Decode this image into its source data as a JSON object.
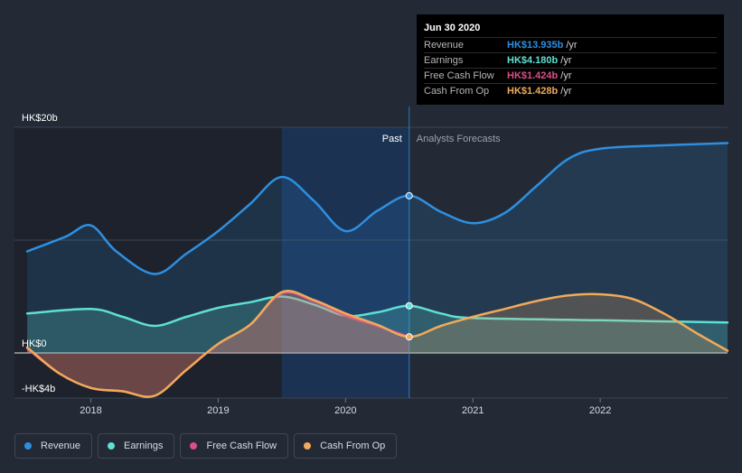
{
  "chart_data": {
    "type": "area",
    "title": "",
    "xlabel": "",
    "ylabel": "",
    "ylim": [
      -4,
      20
    ],
    "x_ticks": [
      2018,
      2019,
      2020,
      2021,
      2022
    ],
    "x_tick_labels": [
      "2018",
      "2019",
      "2020",
      "2021",
      "2022"
    ],
    "y_tick_labels": [
      {
        "value": 20,
        "label": "HK$20b"
      },
      {
        "value": 0,
        "label": "HK$0"
      },
      {
        "value": -4,
        "label": "-HK$4b"
      }
    ],
    "past_label": "Past",
    "forecast_label": "Analysts Forecasts",
    "present_date": 2020.5,
    "highlight_start": 2019.5,
    "series": [
      {
        "name": "Revenue",
        "color": "#2e8fe0",
        "x": [
          2017.5,
          2017.8,
          2018.0,
          2018.2,
          2018.5,
          2018.75,
          2019.0,
          2019.25,
          2019.5,
          2019.75,
          2020.0,
          2020.25,
          2020.5,
          2020.75,
          2021.0,
          2021.25,
          2021.5,
          2021.75,
          2022.0,
          2022.5,
          2023.0
        ],
        "values": [
          9.0,
          10.3,
          11.3,
          9.0,
          7.0,
          8.8,
          10.8,
          13.2,
          15.6,
          13.5,
          10.8,
          12.6,
          13.935,
          12.5,
          11.5,
          12.4,
          14.8,
          17.2,
          18.1,
          18.4,
          18.6
        ]
      },
      {
        "name": "Earnings",
        "color": "#5ee0d2",
        "x": [
          2017.5,
          2018.0,
          2018.25,
          2018.5,
          2018.75,
          2019.0,
          2019.25,
          2019.5,
          2019.75,
          2020.0,
          2020.25,
          2020.5,
          2020.75,
          2021.0,
          2022.0,
          2023.0
        ],
        "values": [
          3.5,
          3.9,
          3.2,
          2.4,
          3.2,
          4.0,
          4.5,
          5.0,
          4.3,
          3.3,
          3.6,
          4.18,
          3.5,
          3.1,
          2.9,
          2.7
        ]
      },
      {
        "name": "Free Cash Flow",
        "color": "#d94f8a",
        "x": [
          2017.5,
          2017.75,
          2018.0,
          2018.25,
          2018.5,
          2018.75,
          2019.0,
          2019.25,
          2019.5,
          2019.75,
          2020.0,
          2020.25,
          2020.5
        ],
        "values": [
          0.4,
          -1.8,
          -3.1,
          -3.4,
          -3.8,
          -1.5,
          0.8,
          2.5,
          5.3,
          4.6,
          3.3,
          2.4,
          1.424
        ]
      },
      {
        "name": "Cash From Op",
        "color": "#f0aa5a",
        "x": [
          2017.5,
          2017.75,
          2018.0,
          2018.25,
          2018.5,
          2018.75,
          2019.0,
          2019.25,
          2019.5,
          2019.75,
          2020.0,
          2020.25,
          2020.5,
          2020.75,
          2021.0,
          2021.25,
          2021.5,
          2021.75,
          2022.0,
          2022.25,
          2022.5,
          2022.75,
          2023.0
        ],
        "values": [
          0.5,
          -1.8,
          -3.1,
          -3.4,
          -3.8,
          -1.5,
          0.8,
          2.5,
          5.4,
          4.7,
          3.5,
          2.5,
          1.428,
          2.4,
          3.2,
          3.9,
          4.6,
          5.1,
          5.2,
          4.8,
          3.5,
          1.8,
          0.2
        ]
      }
    ]
  },
  "tooltip": {
    "date": "Jun 30 2020",
    "rows": [
      {
        "label": "Revenue",
        "value": "HK$13.935b",
        "unit": "/yr",
        "color": "#2e8fe0"
      },
      {
        "label": "Earnings",
        "value": "HK$4.180b",
        "unit": "/yr",
        "color": "#5ee0d2"
      },
      {
        "label": "Free Cash Flow",
        "value": "HK$1.424b",
        "unit": "/yr",
        "color": "#d94f8a"
      },
      {
        "label": "Cash From Op",
        "value": "HK$1.428b",
        "unit": "/yr",
        "color": "#f0aa5a"
      }
    ]
  },
  "legend": [
    {
      "label": "Revenue",
      "color": "#2e8fe0"
    },
    {
      "label": "Earnings",
      "color": "#5ee0d2"
    },
    {
      "label": "Free Cash Flow",
      "color": "#d94f8a"
    },
    {
      "label": "Cash From Op",
      "color": "#f0aa5a"
    }
  ]
}
